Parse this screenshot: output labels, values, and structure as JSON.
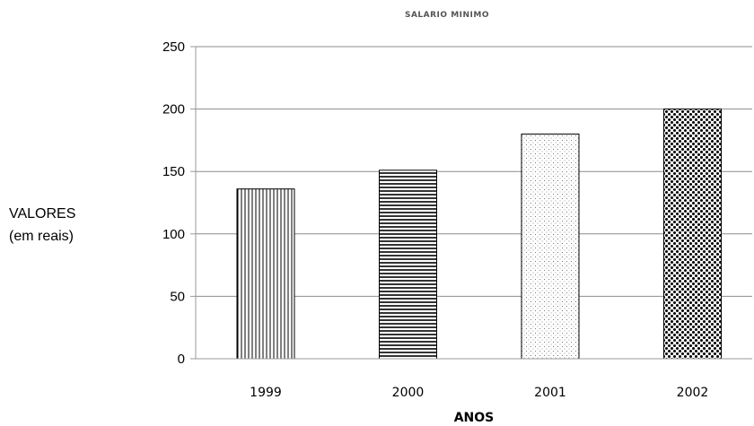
{
  "chart_data": {
    "type": "bar",
    "title": "SALARIO MINIMO",
    "xlabel": "ANOS",
    "ylabel": "VALORES",
    "ylabel_sub": "(em reais)",
    "categories": [
      "1999",
      "2000",
      "2001",
      "2002"
    ],
    "values": [
      136,
      151,
      180,
      200
    ],
    "patterns": [
      "vertical-lines",
      "horizontal-lines",
      "sparse-dots",
      "dense-dots"
    ],
    "ylim": [
      0,
      250
    ],
    "yticks": [
      "0",
      "50",
      "100",
      "150",
      "200",
      "250"
    ],
    "grid": true
  }
}
